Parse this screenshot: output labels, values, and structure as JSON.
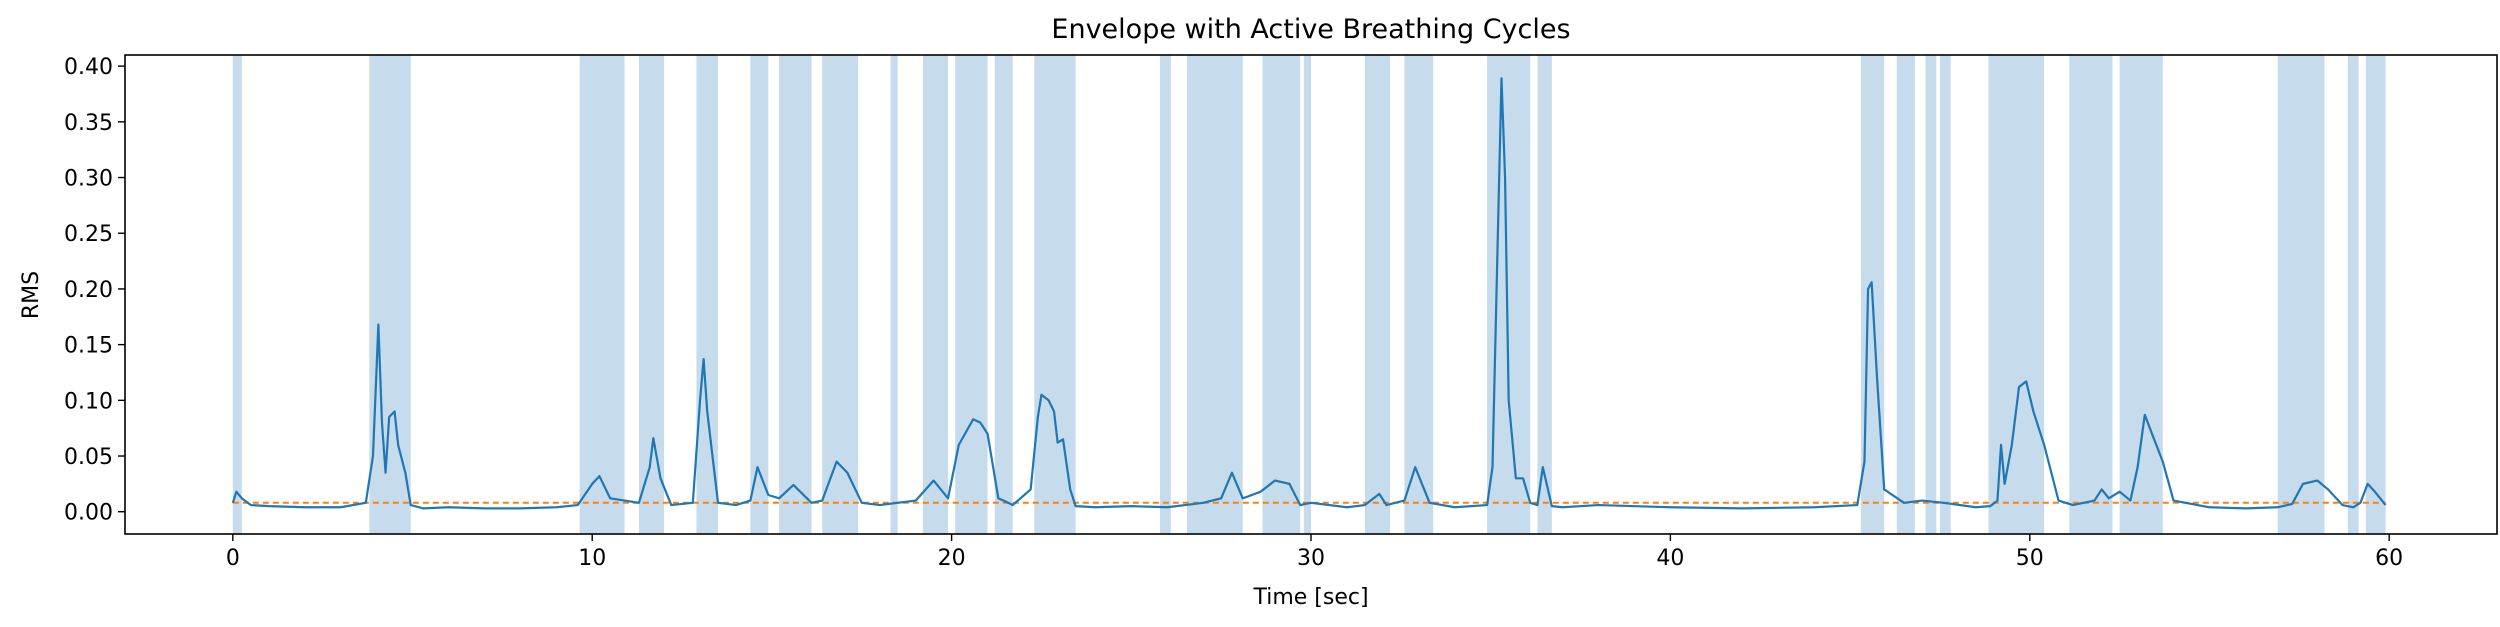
{
  "chart_data": {
    "type": "line",
    "title": "Envelope with Active Breathing Cycles",
    "xlabel": "Time [sec]",
    "ylabel": "RMS",
    "xlim": [
      -3,
      63
    ],
    "ylim": [
      -0.02,
      0.41
    ],
    "xticks": [
      0,
      10,
      20,
      30,
      40,
      50,
      60
    ],
    "yticks": [
      0.0,
      0.05,
      0.1,
      0.15,
      0.2,
      0.25,
      0.3,
      0.35,
      0.4
    ],
    "xtick_labels": [
      "0",
      "10",
      "20",
      "30",
      "40",
      "50",
      "60"
    ],
    "ytick_labels": [
      "0.00",
      "0.05",
      "0.10",
      "0.15",
      "0.20",
      "0.25",
      "0.30",
      "0.35",
      "0.40"
    ],
    "grid": false,
    "colors": {
      "envelope": "#1f77b4",
      "threshold": "#ff7f0e",
      "active_span": "#c6dbeb"
    },
    "threshold": 0.008,
    "active_cycles": [
      [
        0.0,
        0.25
      ],
      [
        3.8,
        4.95
      ],
      [
        9.65,
        10.9
      ],
      [
        11.3,
        12.0
      ],
      [
        12.9,
        13.5
      ],
      [
        14.4,
        14.9
      ],
      [
        15.2,
        16.1
      ],
      [
        16.4,
        17.4
      ],
      [
        18.3,
        18.5
      ],
      [
        19.2,
        19.9
      ],
      [
        20.1,
        21.0
      ],
      [
        21.2,
        21.7
      ],
      [
        22.3,
        23.45
      ],
      [
        25.8,
        26.1
      ],
      [
        26.55,
        28.1
      ],
      [
        28.65,
        29.7
      ],
      [
        29.8,
        30.0
      ],
      [
        31.5,
        32.2
      ],
      [
        32.6,
        33.4
      ],
      [
        34.9,
        36.1
      ],
      [
        36.3,
        36.7
      ],
      [
        45.3,
        45.95
      ],
      [
        46.3,
        46.8
      ],
      [
        47.1,
        47.4
      ],
      [
        47.5,
        47.8
      ],
      [
        48.85,
        50.4
      ],
      [
        51.1,
        52.3
      ],
      [
        52.5,
        53.7
      ],
      [
        56.9,
        58.2
      ],
      [
        58.85,
        59.15
      ],
      [
        59.35,
        59.9
      ]
    ],
    "series": [
      {
        "name": "",
        "x": [
          0.0,
          0.1,
          0.25,
          0.5,
          1.0,
          2.0,
          3.0,
          3.7,
          3.9,
          4.05,
          4.15,
          4.25,
          4.35,
          4.5,
          4.6,
          4.8,
          4.95,
          5.3,
          6.0,
          7.0,
          8.0,
          9.0,
          9.6,
          10.0,
          10.2,
          10.5,
          10.9,
          11.3,
          11.6,
          11.7,
          11.9,
          12.2,
          12.8,
          13.0,
          13.1,
          13.2,
          13.5,
          14.0,
          14.4,
          14.6,
          14.9,
          15.2,
          15.6,
          16.1,
          16.4,
          16.8,
          17.1,
          17.5,
          18.0,
          18.5,
          19.0,
          19.5,
          19.9,
          20.2,
          20.6,
          20.8,
          21.0,
          21.3,
          21.45,
          21.7,
          22.2,
          22.4,
          22.5,
          22.7,
          22.85,
          22.95,
          23.1,
          23.3,
          23.45,
          24.0,
          25.0,
          26.0,
          26.5,
          27.0,
          27.5,
          27.8,
          28.1,
          28.6,
          29.0,
          29.4,
          29.7,
          30.0,
          31.0,
          31.5,
          31.9,
          32.1,
          32.6,
          32.9,
          33.3,
          34.0,
          34.9,
          35.05,
          35.2,
          35.3,
          35.4,
          35.5,
          35.7,
          35.9,
          36.1,
          36.3,
          36.45,
          36.7,
          37.0,
          38.0,
          40.0,
          42.0,
          44.0,
          45.2,
          45.4,
          45.5,
          45.6,
          45.75,
          45.95,
          46.5,
          47.0,
          47.6,
          48.5,
          48.9,
          49.1,
          49.2,
          49.3,
          49.5,
          49.7,
          49.9,
          50.1,
          50.4,
          50.8,
          51.2,
          51.8,
          52.0,
          52.2,
          52.5,
          52.8,
          53.0,
          53.2,
          53.4,
          53.7,
          54.0,
          55.0,
          56.0,
          56.9,
          57.3,
          57.6,
          58.0,
          58.3,
          58.7,
          59.0,
          59.2,
          59.4,
          59.6,
          59.9
        ],
        "values": [
          0.008,
          0.018,
          0.012,
          0.006,
          0.005,
          0.004,
          0.004,
          0.008,
          0.05,
          0.168,
          0.08,
          0.035,
          0.085,
          0.09,
          0.06,
          0.035,
          0.006,
          0.003,
          0.004,
          0.003,
          0.003,
          0.004,
          0.006,
          0.025,
          0.032,
          0.012,
          0.01,
          0.008,
          0.04,
          0.066,
          0.03,
          0.006,
          0.008,
          0.1,
          0.137,
          0.09,
          0.008,
          0.006,
          0.01,
          0.04,
          0.015,
          0.012,
          0.024,
          0.008,
          0.01,
          0.045,
          0.035,
          0.008,
          0.006,
          0.008,
          0.01,
          0.028,
          0.012,
          0.06,
          0.083,
          0.08,
          0.07,
          0.012,
          0.01,
          0.006,
          0.02,
          0.085,
          0.105,
          0.1,
          0.09,
          0.062,
          0.065,
          0.02,
          0.005,
          0.004,
          0.005,
          0.004,
          0.006,
          0.008,
          0.012,
          0.035,
          0.012,
          0.018,
          0.028,
          0.025,
          0.006,
          0.008,
          0.004,
          0.006,
          0.016,
          0.006,
          0.01,
          0.04,
          0.008,
          0.004,
          0.006,
          0.04,
          0.25,
          0.389,
          0.3,
          0.1,
          0.03,
          0.03,
          0.008,
          0.006,
          0.04,
          0.005,
          0.004,
          0.006,
          0.004,
          0.003,
          0.004,
          0.006,
          0.045,
          0.2,
          0.206,
          0.12,
          0.02,
          0.008,
          0.01,
          0.008,
          0.004,
          0.005,
          0.01,
          0.06,
          0.025,
          0.06,
          0.112,
          0.117,
          0.09,
          0.06,
          0.01,
          0.006,
          0.01,
          0.02,
          0.012,
          0.018,
          0.01,
          0.04,
          0.087,
          0.07,
          0.045,
          0.01,
          0.004,
          0.003,
          0.004,
          0.007,
          0.025,
          0.028,
          0.02,
          0.006,
          0.004,
          0.008,
          0.025,
          0.018,
          0.006
        ]
      }
    ]
  }
}
